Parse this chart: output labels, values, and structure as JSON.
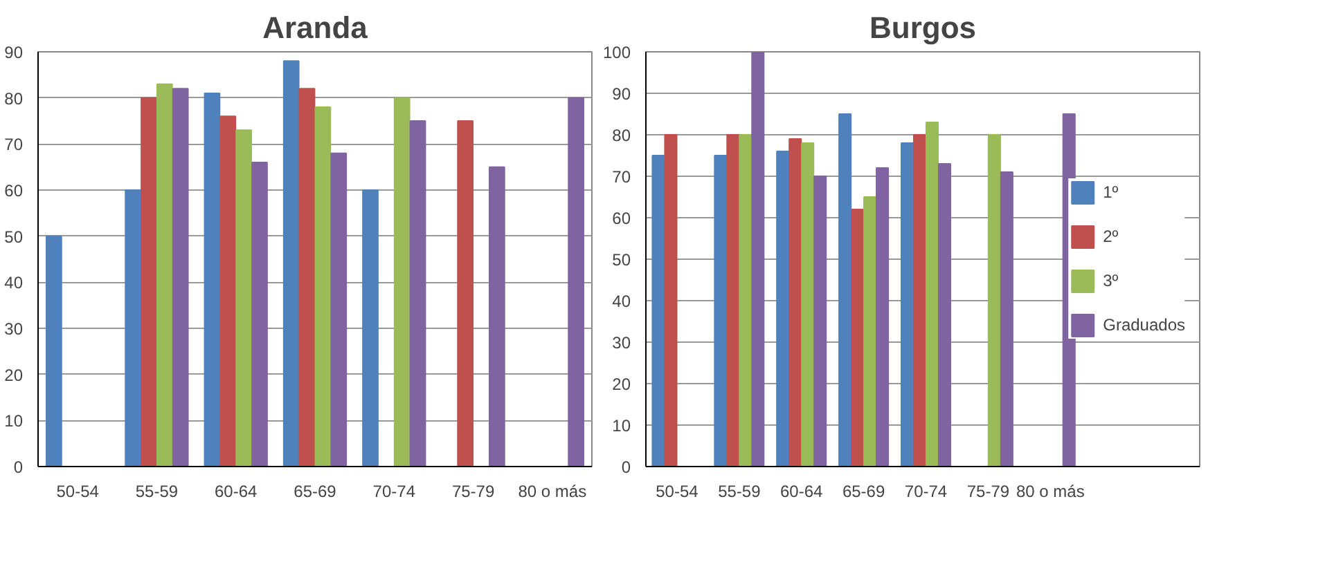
{
  "chart_data": [
    {
      "type": "bar",
      "title": "Aranda",
      "categories": [
        "50-54",
        "55-59",
        "60-64",
        "65-69",
        "70-74",
        "75-79",
        "80 o más"
      ],
      "series": [
        {
          "color": "#4f81bd",
          "values": [
            50,
            60,
            81,
            88,
            60,
            null,
            null
          ]
        },
        {
          "color": "#c0504d",
          "values": [
            null,
            80,
            76,
            82,
            null,
            75,
            null
          ]
        },
        {
          "color": "#9bbb59",
          "values": [
            null,
            83,
            73,
            78,
            80,
            null,
            null
          ]
        },
        {
          "color": "#8064a2",
          "values": [
            null,
            82,
            66,
            68,
            75,
            65,
            80
          ]
        }
      ],
      "ylim": [
        0,
        90
      ],
      "yticks": [
        0,
        10,
        20,
        30,
        40,
        50,
        60,
        70,
        80,
        90
      ],
      "grid": "y",
      "legend": false
    },
    {
      "type": "bar",
      "title": "Burgos",
      "categories": [
        "50-54",
        "55-59",
        "60-64",
        "65-69",
        "70-74",
        "75-79",
        "80 o más"
      ],
      "series": [
        {
          "name": "1º",
          "color": "#4f81bd",
          "values": [
            75,
            75,
            76,
            85,
            78,
            null,
            null
          ]
        },
        {
          "name": "2º",
          "color": "#c0504d",
          "values": [
            80,
            80,
            79,
            62,
            80,
            null,
            null
          ]
        },
        {
          "name": "3º",
          "color": "#9bbb59",
          "values": [
            null,
            80,
            78,
            65,
            83,
            80,
            null
          ]
        },
        {
          "name": "Graduados",
          "color": "#8064a2",
          "values": [
            null,
            100,
            70,
            72,
            73,
            71,
            85
          ]
        }
      ],
      "ylim": [
        0,
        100
      ],
      "yticks": [
        0,
        10,
        20,
        30,
        40,
        50,
        60,
        70,
        80,
        90,
        100
      ],
      "grid": "y",
      "legend": "right"
    }
  ]
}
